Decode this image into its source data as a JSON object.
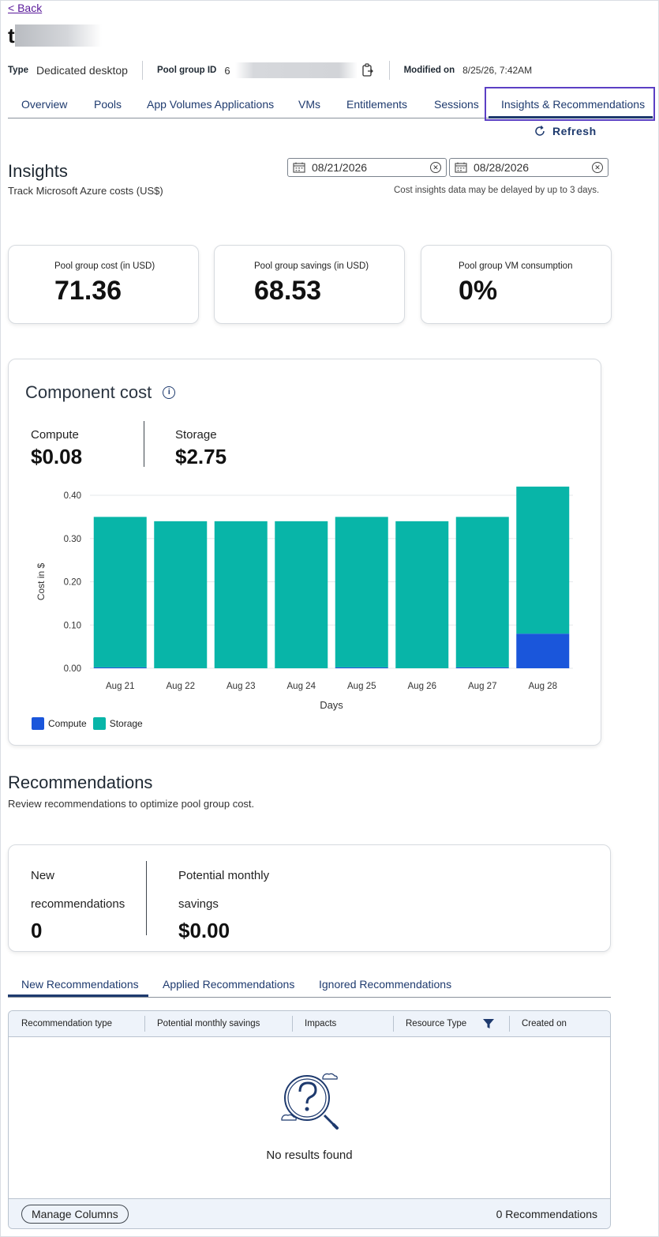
{
  "header": {
    "back_label": "< Back",
    "title_initial": "t",
    "type_key": "Type",
    "type_value": "Dedicated desktop",
    "pool_id_key": "Pool group ID",
    "pool_id_initial": "6",
    "modified_key": "Modified on",
    "modified_value": "8/25/26, 7:42AM"
  },
  "tabs": [
    {
      "label": "Overview"
    },
    {
      "label": "Pools"
    },
    {
      "label": "App Volumes Applications"
    },
    {
      "label": "VMs"
    },
    {
      "label": "Entitlements"
    },
    {
      "label": "Sessions"
    },
    {
      "label": "Insights & Recommendations",
      "active": true
    }
  ],
  "refresh_label": "Refresh",
  "insights": {
    "title": "Insights",
    "subtitle": "Track Microsoft Azure costs (US$)",
    "date_from": "08/21/2026",
    "date_to": "08/28/2026",
    "delay_note": "Cost insights data may be delayed by up to 3 days."
  },
  "kpis": [
    {
      "label": "Pool group cost (in USD)",
      "value": "71.36"
    },
    {
      "label": "Pool group savings (in USD)",
      "value": "68.53"
    },
    {
      "label": "Pool group VM consumption",
      "value": "0%"
    }
  ],
  "component_cost": {
    "title": "Component cost",
    "compute_label": "Compute",
    "compute_value": "$0.08",
    "storage_label": "Storage",
    "storage_value": "$2.75"
  },
  "colors": {
    "compute": "#1a56db",
    "storage": "#08b5a8",
    "accent": "#1e3a6e",
    "active_tab_border": "#5b3fc4"
  },
  "chart_data": {
    "type": "bar",
    "stacked": true,
    "categories": [
      "Aug 21",
      "Aug 22",
      "Aug 23",
      "Aug 24",
      "Aug 25",
      "Aug 26",
      "Aug 27",
      "Aug 28"
    ],
    "series": [
      {
        "name": "Compute",
        "values": [
          0.002,
          0.0,
          0.0,
          0.0,
          0.002,
          0.0,
          0.002,
          0.08
        ]
      },
      {
        "name": "Storage",
        "values": [
          0.348,
          0.34,
          0.34,
          0.34,
          0.348,
          0.34,
          0.348,
          0.34
        ]
      }
    ],
    "xlabel": "Days",
    "ylabel": "Cost in $",
    "ylim": [
      0,
      0.4
    ],
    "yticks": [
      "0.00",
      "0.10",
      "0.20",
      "0.30",
      "0.40"
    ],
    "grid": true,
    "legend": "bottom-left"
  },
  "recommendations": {
    "title": "Recommendations",
    "subtitle": "Review recommendations to optimize pool group cost.",
    "new_label_1": "New",
    "new_label_2": "recommendations",
    "new_value": "0",
    "savings_label_1": "Potential monthly",
    "savings_label_2": "savings",
    "savings_value": "$0.00",
    "tabs": [
      {
        "label": "New Recommendations",
        "active": true
      },
      {
        "label": "Applied Recommendations"
      },
      {
        "label": "Ignored Recommendations"
      }
    ],
    "columns": [
      "Recommendation type",
      "Potential monthly savings",
      "Impacts",
      "Resource Type",
      "Created on"
    ],
    "empty_text": "No results found",
    "manage_columns": "Manage Columns",
    "count_text": "0 Recommendations"
  }
}
